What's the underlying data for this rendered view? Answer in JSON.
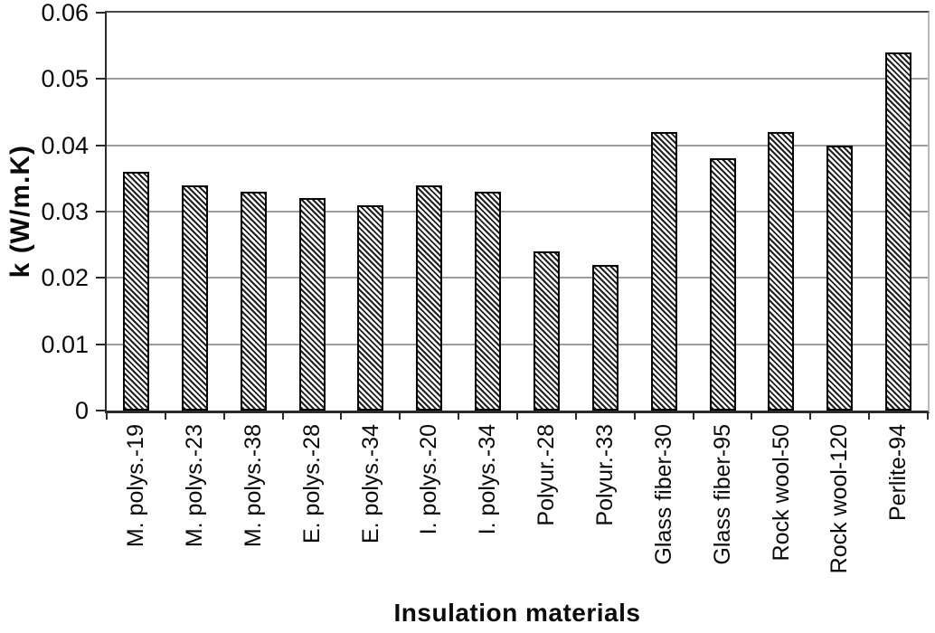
{
  "chart_data": {
    "type": "bar",
    "title": "",
    "xlabel": "Insulation materials",
    "ylabel": "k (W/m.K)",
    "categories": [
      "M. polys.-19",
      "M. polys.-23",
      "M. polys.-38",
      "E. polys.-28",
      "E. polys.-34",
      "I. polys.-20",
      "I. polys.-34",
      "Polyur.-28",
      "Polyur.-33",
      "Glass fiber-30",
      "Glass fiber-95",
      "Rock wool-50",
      "Rock wool-120",
      "Perlite-94"
    ],
    "values": [
      0.036,
      0.034,
      0.033,
      0.032,
      0.031,
      0.034,
      0.033,
      0.024,
      0.022,
      0.042,
      0.038,
      0.042,
      0.04,
      0.054
    ],
    "ylim": [
      0,
      0.06
    ],
    "ytick_step": 0.01,
    "ytick_labels": [
      "0",
      "0.01",
      "0.02",
      "0.03",
      "0.04",
      "0.05",
      "0.06"
    ],
    "grid": true,
    "legend": false,
    "bar_fill": "#ffffff",
    "bar_hatch": "diagonal-down",
    "hatch_color": "#1f1f1f",
    "bar_border_color": "#050505",
    "gridline_color": "#9c9c9c",
    "axis_color": "#2a2a2a"
  }
}
